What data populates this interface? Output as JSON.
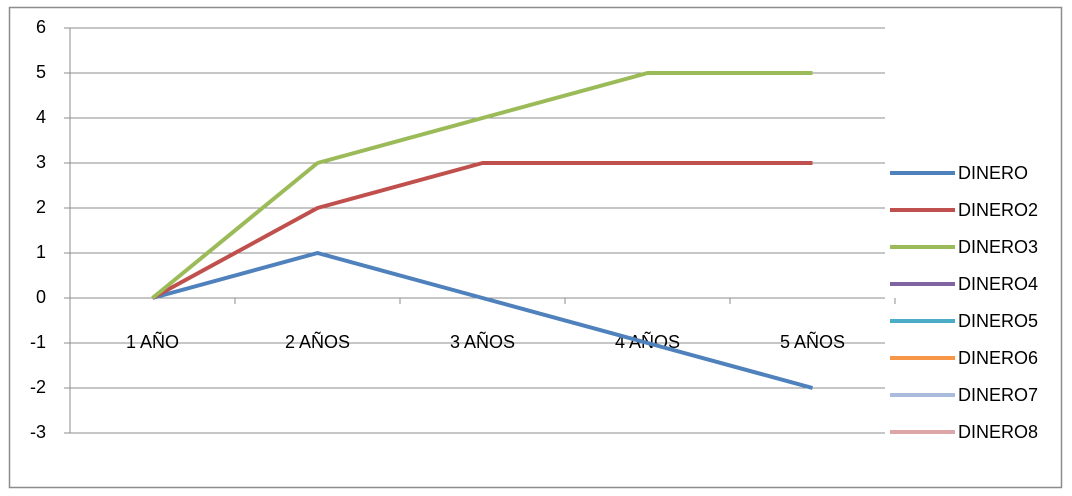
{
  "chart_data": {
    "type": "line",
    "categories": [
      "1 AÑO",
      "2 AÑOS",
      "3 AÑOS",
      "4 AÑOS",
      "5 AÑOS"
    ],
    "series": [
      {
        "name": "DINERO",
        "color": "#4f81bd",
        "values": [
          0,
          1,
          0,
          -1,
          -2
        ]
      },
      {
        "name": "DINERO2",
        "color": "#c0504d",
        "values": [
          0,
          2,
          3,
          3,
          3
        ]
      },
      {
        "name": "DINERO3",
        "color": "#9bbb59",
        "values": [
          0,
          3,
          4,
          5,
          5
        ]
      },
      {
        "name": "DINERO4",
        "color": "#8064a2",
        "values": [
          null,
          null,
          null,
          null,
          null
        ]
      },
      {
        "name": "DINERO5",
        "color": "#4bacc6",
        "values": [
          null,
          null,
          null,
          null,
          null
        ]
      },
      {
        "name": "DINERO6",
        "color": "#f79646",
        "values": [
          null,
          null,
          null,
          null,
          null
        ]
      },
      {
        "name": "DINERO7",
        "color": "#a9bcdc",
        "values": [
          null,
          null,
          null,
          null,
          null
        ]
      },
      {
        "name": "DINERO8",
        "color": "#dca7a6",
        "values": [
          null,
          null,
          null,
          null,
          null
        ]
      }
    ],
    "ylim": [
      -3,
      6
    ],
    "yticks": [
      -3,
      -2,
      -1,
      0,
      1,
      2,
      3,
      4,
      5,
      6
    ],
    "grid": true,
    "legend": "right"
  }
}
